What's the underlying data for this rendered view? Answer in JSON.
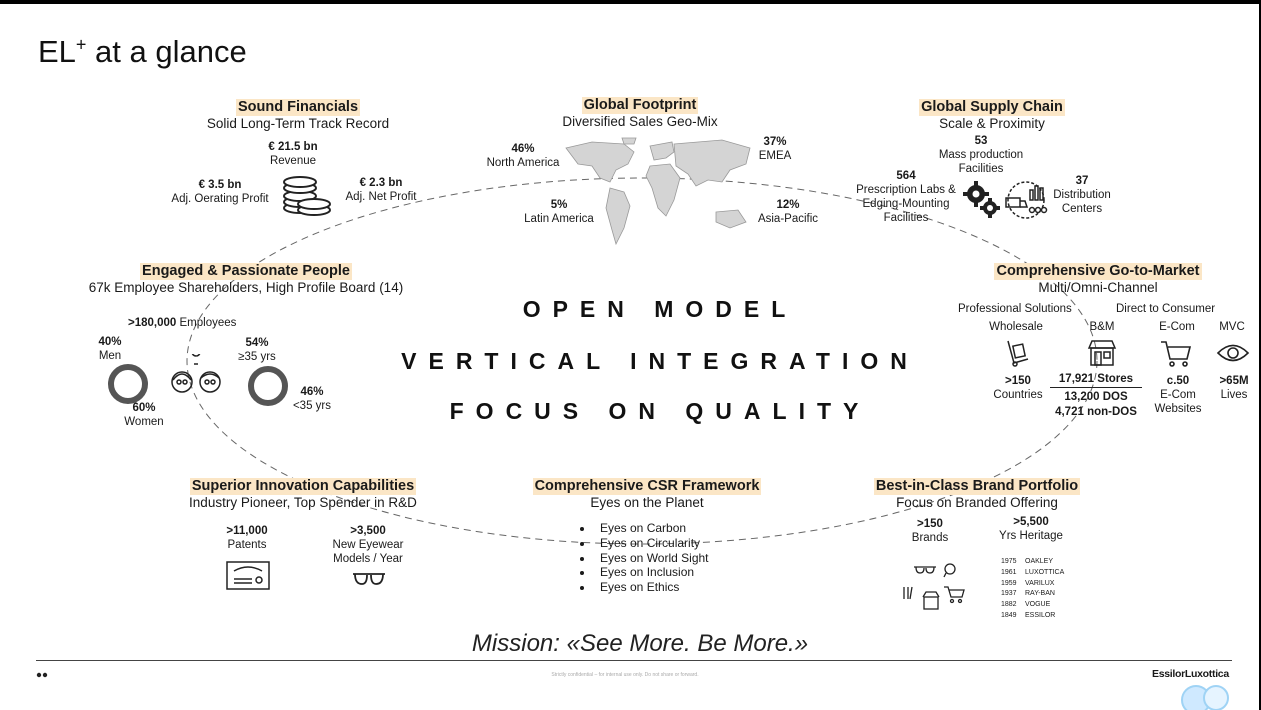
{
  "title": {
    "main": "EL",
    "sup": "+",
    "rest": " at a glance"
  },
  "center": {
    "line1": "OPEN MODEL",
    "line2": "VERTICAL INTEGRATION",
    "line3": "FOCUS ON QUALITY"
  },
  "sound_financials": {
    "heading": "Sound Financials",
    "subheading": "Solid Long-Term Track Record",
    "revenue_value": "€ 21.5 bn",
    "revenue_label": "Revenue",
    "op_profit_value": "€ 3.5 bn",
    "op_profit_label": "Adj. Oerating Profit",
    "net_profit_value": "€ 2.3 bn",
    "net_profit_label": "Adj. Net Profit"
  },
  "global_footprint": {
    "heading": "Global Footprint",
    "subheading": "Diversified Sales Geo-Mix",
    "na_pct": "46%",
    "na_label": "North America",
    "emea_pct": "37%",
    "emea_label": "EMEA",
    "latam_pct": "5%",
    "latam_label": "Latin America",
    "apac_pct": "12%",
    "apac_label": "Asia-Pacific"
  },
  "supply_chain": {
    "heading": "Global Supply Chain",
    "subheading": "Scale & Proximity",
    "mass_value": "53",
    "mass_label1": "Mass production",
    "mass_label2": "Facilities",
    "labs_value": "564",
    "labs_label1": "Prescription Labs &",
    "labs_label2": "Edging-Mounting",
    "labs_label3": "Facilities",
    "dist_value": "37",
    "dist_label1": "Distribution",
    "dist_label2": "Centers"
  },
  "people": {
    "heading": "Engaged & Passionate People",
    "subheading": "67k Employee Shareholders, High Profile Board (14)",
    "employees_value": ">180,000",
    "employees_label": "Employees",
    "men_pct": "40%",
    "men_label": "Men",
    "women_pct": "60%",
    "women_label": "Women",
    "over35_pct": "54%",
    "over35_label": "≥35 yrs",
    "under35_pct": "46%",
    "under35_label": "<35 yrs"
  },
  "go_to_market": {
    "heading": "Comprehensive Go-to-Market",
    "subheading": "Multi/Omni-Channel",
    "professional": "Professional Solutions",
    "direct": "Direct to Consumer",
    "wholesale_label": "Wholesale",
    "wholesale_value": ">150",
    "wholesale_sub": "Countries",
    "bm_label": "B&M",
    "bm_stores": "17,921 Stores",
    "bm_dos": "13,200 DOS",
    "bm_nondos": "4,721 non-DOS",
    "ecom_label": "E-Com",
    "ecom_value": "c.50",
    "ecom_sub1": "E-Com",
    "ecom_sub2": "Websites",
    "mvc_label": "MVC",
    "mvc_value": ">65M",
    "mvc_sub": "Lives"
  },
  "innovation": {
    "heading": "Superior Innovation Capabilities",
    "subheading": "Industry Pioneer, Top Spender in R&D",
    "patents_value": ">11,000",
    "patents_label": "Patents",
    "models_value": ">3,500",
    "models_label1": "New Eyewear",
    "models_label2": "Models / Year"
  },
  "csr": {
    "heading": "Comprehensive CSR Framework",
    "subheading": "Eyes on the Planet",
    "items": [
      "Eyes on Carbon",
      "Eyes on Circularity",
      "Eyes on World Sight",
      "Eyes on Inclusion",
      "Eyes on Ethics"
    ]
  },
  "brands": {
    "heading": "Best-in-Class Brand Portfolio",
    "subheading": "Focus on Branded Offering",
    "brands_value": ">150",
    "brands_label": "Brands",
    "heritage_value": ">5,500",
    "heritage_label": "Yrs Heritage",
    "history": [
      {
        "year": "1975",
        "name": "OAKLEY"
      },
      {
        "year": "1961",
        "name": "LUXOTTICA"
      },
      {
        "year": "1959",
        "name": "VARILUX"
      },
      {
        "year": "1937",
        "name": "RAY-BAN"
      },
      {
        "year": "1882",
        "name": "VOGUE"
      },
      {
        "year": "1849",
        "name": "ESSILOR"
      }
    ]
  },
  "mission": "Mission: «See More. Be More.»",
  "footer": {
    "confidential": "Strictly confidential – for internal use only. Do not share or forward.",
    "logo": "EssilorLuxottica"
  },
  "colors": {
    "highlight": "#fbe6c6",
    "ring": "#555555",
    "dashed": "#666666"
  }
}
